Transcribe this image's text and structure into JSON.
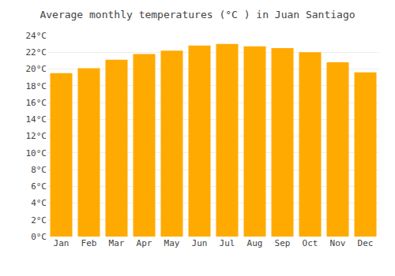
{
  "chart_data": {
    "type": "bar",
    "title": "Average monthly temperatures (°C ) in Juan Santiago",
    "categories": [
      "Jan",
      "Feb",
      "Mar",
      "Apr",
      "May",
      "Jun",
      "Jul",
      "Aug",
      "Sep",
      "Oct",
      "Nov",
      "Dec"
    ],
    "values": [
      19.5,
      20.1,
      21.1,
      21.8,
      22.2,
      22.8,
      23.0,
      22.7,
      22.5,
      22.0,
      20.8,
      19.6
    ],
    "color": "#FFAA00",
    "ylim": [
      0,
      24
    ],
    "yticks": [
      {
        "value": 0,
        "label": "0°C"
      },
      {
        "value": 2,
        "label": "2°C"
      },
      {
        "value": 4,
        "label": "4°C"
      },
      {
        "value": 6,
        "label": "6°C"
      },
      {
        "value": 8,
        "label": "8°C"
      },
      {
        "value": 10,
        "label": "10°C"
      },
      {
        "value": 12,
        "label": "12°C"
      },
      {
        "value": 14,
        "label": "14°C"
      },
      {
        "value": 16,
        "label": "16°C"
      },
      {
        "value": 18,
        "label": "18°C"
      },
      {
        "value": 20,
        "label": "20°C"
      },
      {
        "value": 22,
        "label": "22°C"
      },
      {
        "value": 24,
        "label": "24°C"
      }
    ],
    "grid": true
  }
}
